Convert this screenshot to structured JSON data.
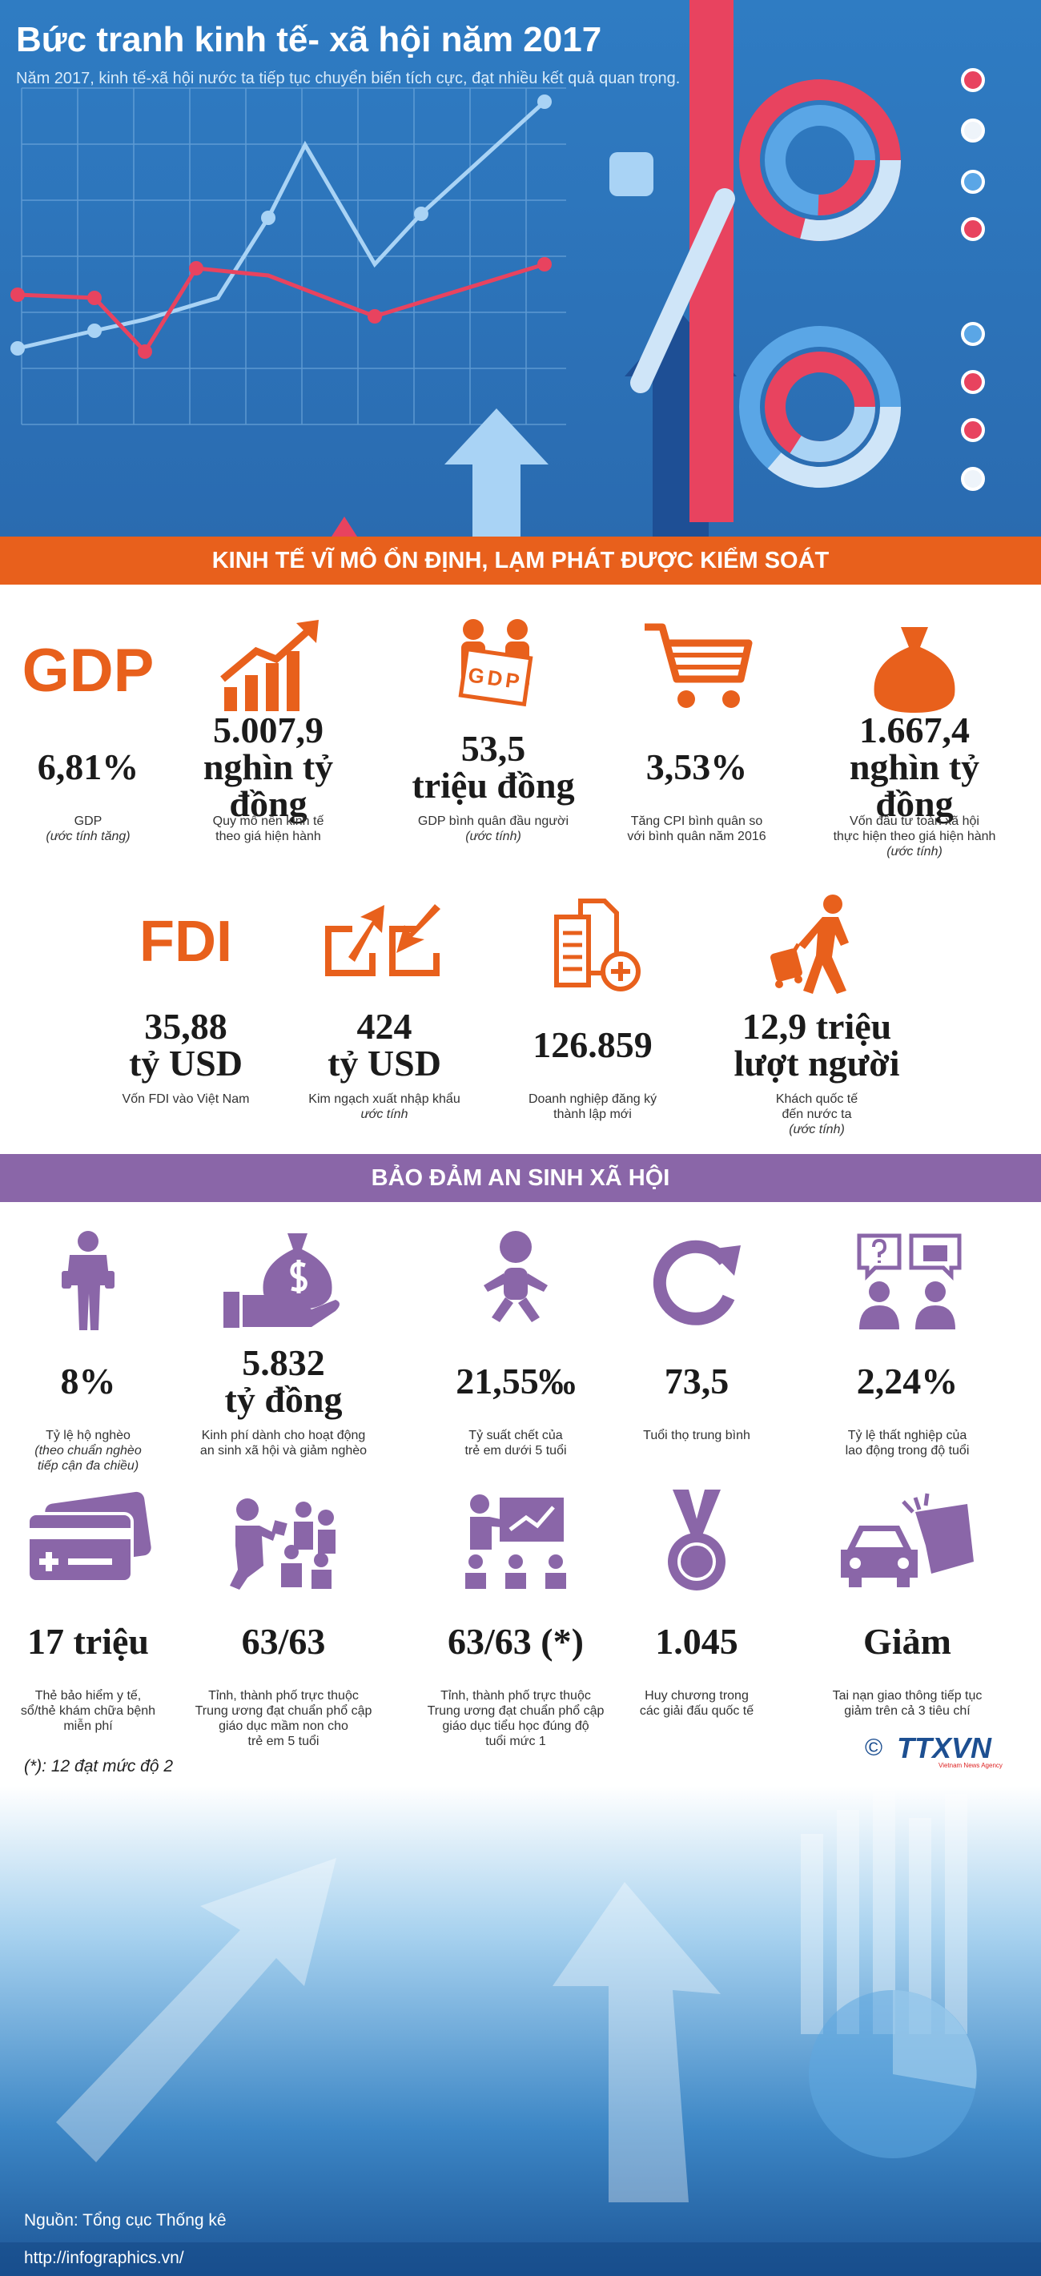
{
  "header": {
    "title": "Bức tranh kinh tế- xã hội năm 2017",
    "subtitle": "Năm 2017, kinh tế-xã hội nước ta tiếp tục chuyển biến tích cực, đạt nhiều kết quả quan trọng."
  },
  "sections": [
    {
      "heading": "KINH TẾ VĨ MÔ ỔN ĐỊNH, LẠM PHÁT ĐƯỢC KIỂM SOÁT",
      "items": [
        {
          "icon_text": "GDP",
          "value": [
            "6,81%"
          ],
          "label": [
            "GDP"
          ],
          "note": [
            "(ước tính tăng)"
          ]
        },
        {
          "value": [
            "5.007,9",
            "nghìn tỷ đồng"
          ],
          "label": [
            "Quy mô nền kinh tế",
            "theo giá hiện hành"
          ]
        },
        {
          "icon_text": "GDP",
          "value": [
            "53,5",
            "triệu đồng"
          ],
          "label": [
            "GDP bình quân đầu người"
          ],
          "note": [
            "(ước tính)"
          ]
        },
        {
          "value": [
            "3,53%"
          ],
          "label": [
            "Tăng CPI bình quân so",
            "với bình quân năm 2016"
          ]
        },
        {
          "value": [
            "1.667,4",
            "nghìn tỷ đồng"
          ],
          "label": [
            "Vốn đầu tư toàn xã hội",
            "thực hiện theo giá hiện hành"
          ],
          "note": [
            "(ước tính)"
          ]
        },
        {
          "icon_text": "FDI",
          "value": [
            "35,88",
            "tỷ USD"
          ],
          "label": [
            "Vốn FDI vào Việt Nam"
          ]
        },
        {
          "value": [
            "424",
            "tỷ USD"
          ],
          "label": [
            "Kim ngạch xuất nhập khẩu"
          ],
          "note": [
            "ước tính"
          ]
        },
        {
          "value": [
            "126.859"
          ],
          "label": [
            "Doanh nghiệp đăng ký",
            "thành lập mới"
          ]
        },
        {
          "value": [
            "12,9 triệu",
            "lượt người"
          ],
          "label": [
            "Khách quốc tế",
            "đến nước ta"
          ],
          "note": [
            "(ước tính)"
          ]
        }
      ]
    },
    {
      "heading": "BẢO ĐẢM AN SINH XÃ HỘI",
      "items": [
        {
          "value": [
            "8%"
          ],
          "label": [
            "Tỷ lệ hộ nghèo"
          ],
          "note": [
            "(theo chuẩn nghèo",
            "tiếp cận đa chiều)"
          ]
        },
        {
          "value": [
            "5.832",
            "tỷ đồng"
          ],
          "label": [
            "Kinh phí dành cho hoạt động",
            "an sinh xã hội và giảm nghèo"
          ]
        },
        {
          "value": [
            "21,55‰"
          ],
          "label": [
            "Tỷ suất chết của",
            "trẻ em dưới 5 tuổi"
          ]
        },
        {
          "value": [
            "73,5"
          ],
          "label": [
            "Tuổi thọ trung bình"
          ]
        },
        {
          "value": [
            "2,24%"
          ],
          "label": [
            "Tỷ lệ thất nghiệp của",
            "lao động trong độ tuổi"
          ]
        },
        {
          "value": [
            "17 triệu"
          ],
          "label": [
            "Thẻ bảo hiểm y tế,",
            "sổ/thẻ khám chữa bệnh",
            "miễn phí"
          ]
        },
        {
          "value": [
            "63/63"
          ],
          "label": [
            "Tỉnh, thành phố trực thuộc",
            "Trung ương  đạt chuẩn phổ cập",
            "giáo dục mầm non cho",
            "trẻ em 5 tuổi"
          ]
        },
        {
          "value": [
            "63/63 (*)"
          ],
          "label": [
            "Tỉnh, thành phố trực thuộc",
            "Trung ương  đạt chuẩn phổ cập",
            "giáo dục tiểu học đúng độ",
            "tuổi mức 1"
          ]
        },
        {
          "value": [
            "1.045"
          ],
          "label": [
            "Huy chương trong",
            "các giải đấu quốc tế"
          ]
        },
        {
          "value": [
            "Giảm"
          ],
          "label": [
            "Tai nạn giao thông tiếp tục",
            "giảm trên cả 3 tiêu chí"
          ]
        }
      ]
    }
  ],
  "footnote": "(*): 12 đạt mức độ 2",
  "logo": {
    "mark": "©",
    "name": "TTXVN",
    "tagline": "Vietnam News Agency"
  },
  "footer": {
    "source": "Nguồn: Tổng cục Thống kê",
    "url": "http://infographics.vn/"
  }
}
